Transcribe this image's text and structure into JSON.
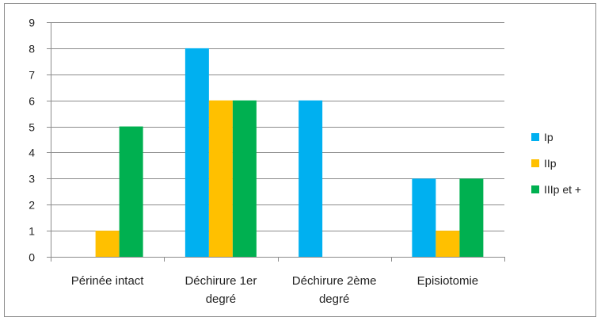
{
  "chart_data": {
    "type": "bar",
    "title": "",
    "xlabel": "",
    "ylabel": "",
    "categories": [
      [
        "Périnée intact"
      ],
      [
        "Déchirure 1er",
        "degré"
      ],
      [
        "Déchirure 2ème",
        "degré"
      ],
      [
        "Episiotomie"
      ]
    ],
    "series": [
      {
        "name": "Ip",
        "color": "#00B0F0",
        "values": [
          0,
          8,
          6,
          3
        ]
      },
      {
        "name": "IIp",
        "color": "#FFC000",
        "values": [
          1,
          6,
          0,
          1
        ]
      },
      {
        "name": "IIIp et +",
        "color": "#00B050",
        "values": [
          5,
          6,
          0,
          3
        ]
      }
    ],
    "ylim": [
      0,
      9
    ],
    "yticks": [
      0,
      1,
      2,
      3,
      4,
      5,
      6,
      7,
      8,
      9
    ],
    "grid": true,
    "legend_position": "right",
    "colors": {
      "gridline": "#8c8c8c",
      "axis": "#8c8c8c"
    }
  }
}
